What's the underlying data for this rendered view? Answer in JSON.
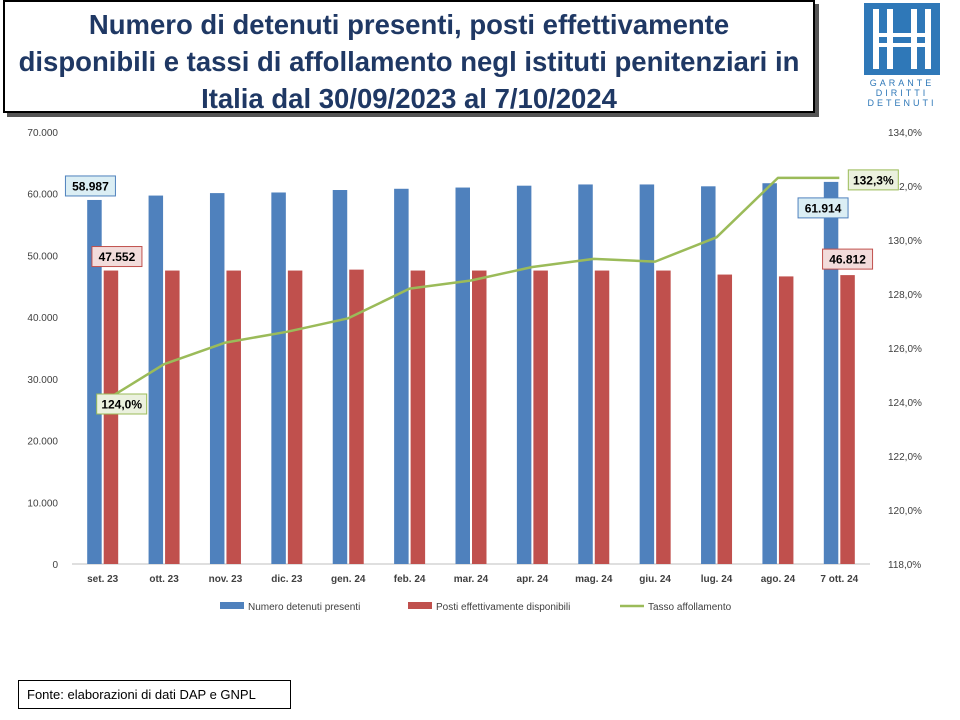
{
  "title": "Numero di detenuti presenti, posti effettivamente\ndisponibili e tassi di affollamento negl istituti penitenziari in\nItalia dal 30/09/2023 al 7/10/2024",
  "logo": {
    "lines": [
      "GARANTE",
      "DIRITTI",
      "DETENUTI"
    ],
    "color": "#2f78b8"
  },
  "source": "Fonte: elaborazioni di dati DAP e GNPL",
  "chart_data": {
    "type": "bar",
    "categories": [
      "set. 23",
      "ott. 23",
      "nov. 23",
      "dic. 23",
      "gen. 24",
      "feb. 24",
      "mar. 24",
      "apr. 24",
      "mag. 24",
      "giu. 24",
      "lug. 24",
      "ago. 24",
      "7 ott. 24"
    ],
    "series": [
      {
        "name": "Numero detenuti presenti",
        "type": "bar",
        "axis": "left",
        "color": "#4f81bd",
        "values": [
          58987,
          59700,
          60100,
          60200,
          60600,
          60800,
          61000,
          61300,
          61500,
          61500,
          61200,
          61700,
          61914
        ]
      },
      {
        "name": "Posti effettivamente disponibili",
        "type": "bar",
        "axis": "left",
        "color": "#c0504d",
        "values": [
          47552,
          47550,
          47550,
          47550,
          47700,
          47550,
          47550,
          47550,
          47550,
          47550,
          46900,
          46600,
          46812
        ]
      },
      {
        "name": "Tasso affollamento",
        "type": "line",
        "axis": "right",
        "color": "#9bbb59",
        "values": [
          124.0,
          125.4,
          126.2,
          126.6,
          127.1,
          128.2,
          128.5,
          129.0,
          129.3,
          129.2,
          130.1,
          132.3,
          132.3
        ]
      }
    ],
    "y_left": {
      "lim": [
        0,
        70000
      ],
      "ticks": [
        "0",
        "10.000",
        "20.000",
        "30.000",
        "40.000",
        "50.000",
        "60.000",
        "70.000"
      ]
    },
    "y_right": {
      "lim": [
        118,
        134
      ],
      "ticks": [
        "118,0%",
        "120,0%",
        "122,0%",
        "124,0%",
        "126,0%",
        "128,0%",
        "130,0%",
        "132,0%",
        "134,0%"
      ]
    },
    "callouts": [
      {
        "label": "58.987",
        "series": 0,
        "index": 0,
        "fill": "#dbeef4",
        "border": "#4f81bd"
      },
      {
        "label": "47.552",
        "series": 1,
        "index": 0,
        "fill": "#f2dcdb",
        "border": "#c0504d"
      },
      {
        "label": "124,0%",
        "series": 2,
        "index": 0,
        "fill": "#ebf1de",
        "border": "#9bbb59"
      },
      {
        "label": "61.914",
        "series": 0,
        "index": 12,
        "fill": "#dbeef4",
        "border": "#4f81bd"
      },
      {
        "label": "46.812",
        "series": 1,
        "index": 12,
        "fill": "#f2dcdb",
        "border": "#c0504d"
      },
      {
        "label": "132,3%",
        "series": 2,
        "index": 12,
        "fill": "#ebf1de",
        "border": "#9bbb59"
      }
    ],
    "legend_position": "bottom",
    "grid": false
  }
}
